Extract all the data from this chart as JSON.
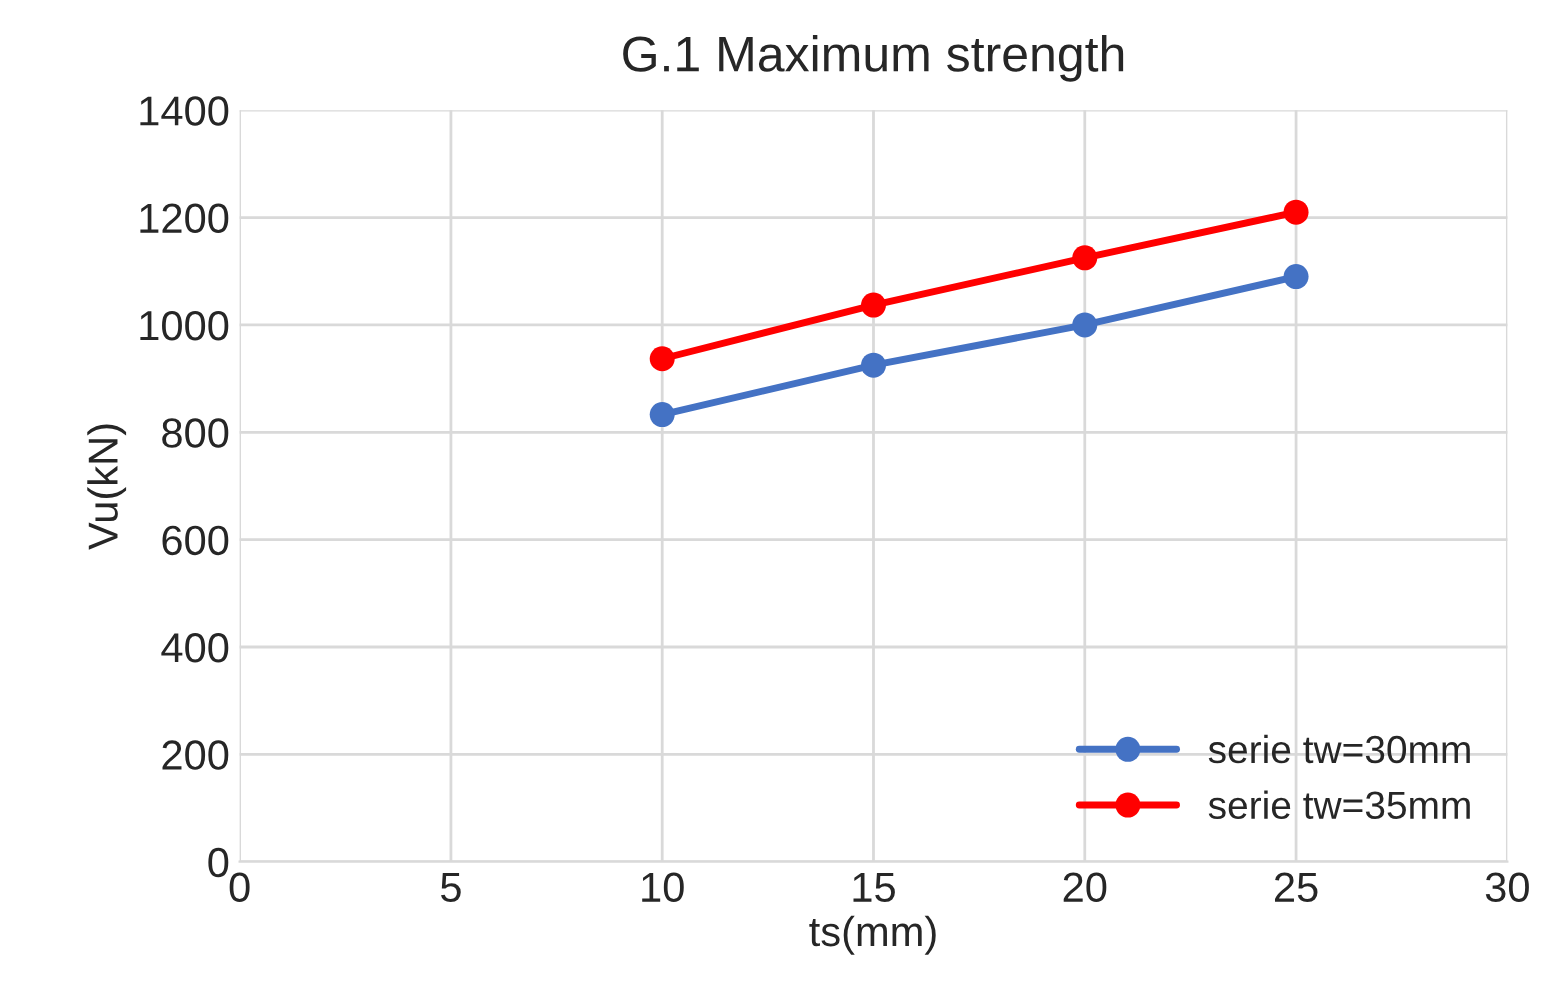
{
  "chart_data": {
    "type": "line",
    "title": "G.1 Maximum strength",
    "xlabel": "ts(mm)",
    "ylabel": "Vu(kN)",
    "x": [
      10,
      15,
      20,
      25
    ],
    "series": [
      {
        "name": "serie tw=30mm",
        "color": "#4472c4",
        "values": [
          833,
          925,
          1000,
          1090
        ]
      },
      {
        "name": "serie tw=35mm",
        "color": "#ff0000",
        "values": [
          937,
          1037,
          1125,
          1210
        ]
      }
    ],
    "xlim": [
      0,
      30
    ],
    "xticks": [
      0,
      5,
      10,
      15,
      20,
      25,
      30
    ],
    "ylim": [
      0,
      1400
    ],
    "yticks": [
      0,
      200,
      400,
      600,
      800,
      1000,
      1200,
      1400
    ],
    "grid": true,
    "legend": "bottom right",
    "marker": "circle",
    "line_style": "solid"
  }
}
